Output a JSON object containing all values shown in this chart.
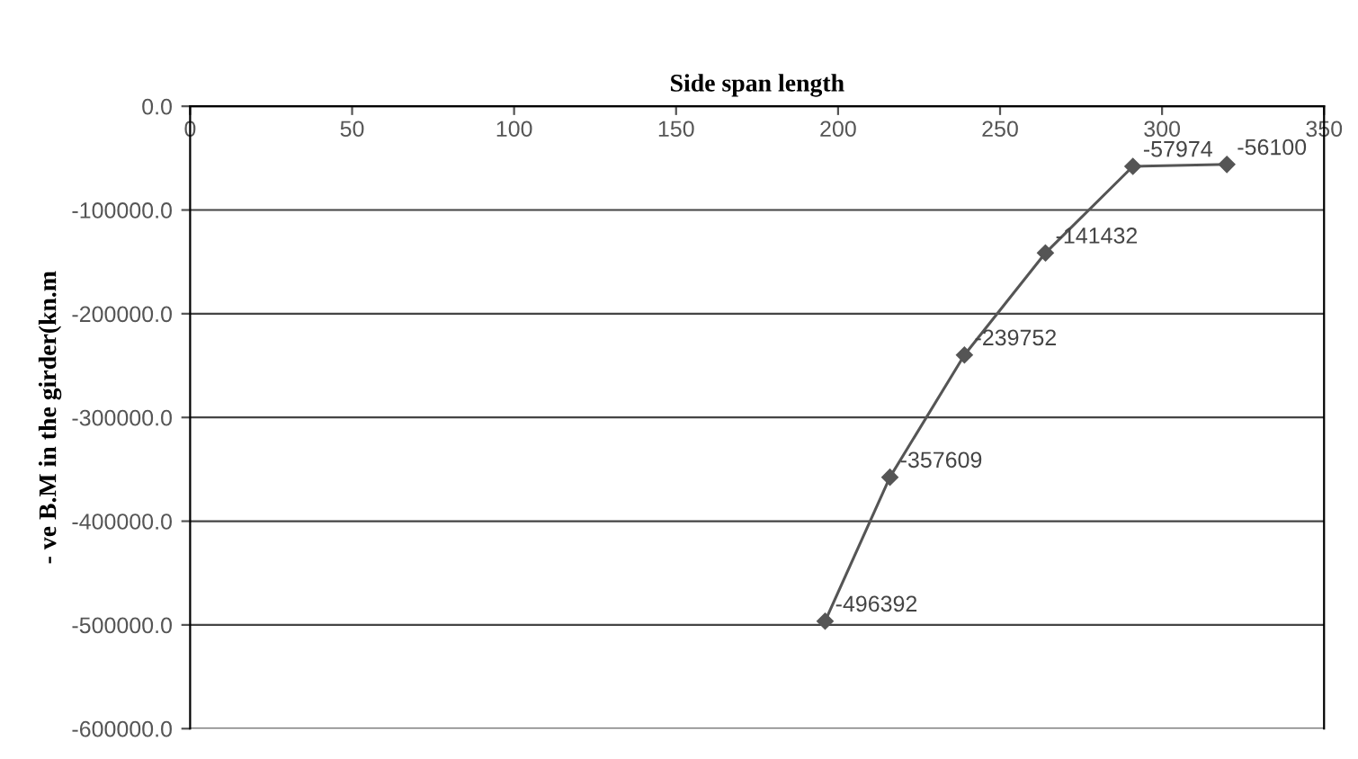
{
  "chart_data": {
    "type": "line",
    "xlabel": "Side span length",
    "ylabel": "- ve B.M in the girder(kn.m",
    "x": [
      196,
      216,
      239,
      264,
      291,
      320
    ],
    "values": [
      -496392,
      -357609,
      -239752,
      -141432,
      -57974,
      -56100
    ],
    "color": "#555555",
    "marker": "diamond",
    "line_style": "solid",
    "data_labels": true,
    "xlim": [
      0,
      350
    ],
    "xticks": [
      0,
      50,
      100,
      150,
      200,
      250,
      300,
      350
    ],
    "ylim": [
      -600000,
      0
    ],
    "yticks": [
      {
        "value": 0,
        "label": "0.0"
      },
      {
        "value": -100000,
        "label": "-100000.0"
      },
      {
        "value": -200000,
        "label": "-200000.0"
      },
      {
        "value": -300000,
        "label": "-300000.0"
      },
      {
        "value": -400000,
        "label": "-400000.0"
      },
      {
        "value": -500000,
        "label": "-500000.0"
      },
      {
        "value": -600000,
        "label": "-600000.0"
      }
    ],
    "grid": "y"
  }
}
